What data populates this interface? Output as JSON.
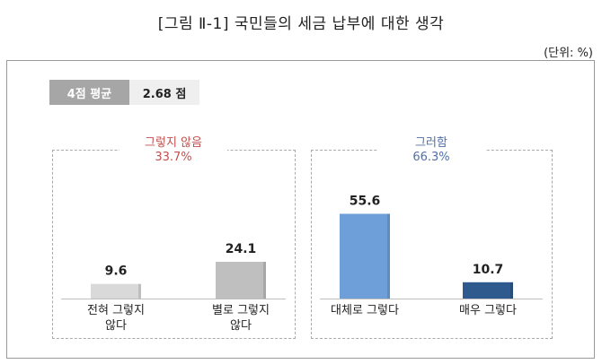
{
  "title": "[그림 Ⅱ-1] 국민들의 세금 납부에 대한 생각",
  "unit": "(단위: %)",
  "average": {
    "label": "4점 평균",
    "value": "2.68 점"
  },
  "groups": [
    {
      "name": "그렇지 않음",
      "value": "33.7%",
      "color": "#c0504d"
    },
    {
      "name": "그러함",
      "value": "66.3%",
      "color": "#4f6fa8"
    }
  ],
  "chart_data": {
    "type": "bar",
    "categories": [
      "전혀 그렇지\n않다",
      "별로 그렇지\n않다",
      "대체로 그렇다",
      "매우 그렇다"
    ],
    "values": [
      9.6,
      24.1,
      55.6,
      10.7
    ],
    "value_labels": [
      "9.6",
      "24.1",
      "55.6",
      "10.7"
    ],
    "colors": [
      "#d9d9d9",
      "#bfbfbf",
      "#6f9fd8",
      "#2e5a8e"
    ],
    "title": "[그림 Ⅱ-1] 국민들의 세금 납부에 대한 생각",
    "xlabel": "",
    "ylabel": "",
    "ylim": [
      0,
      60
    ],
    "grid": false,
    "legend": "none"
  }
}
